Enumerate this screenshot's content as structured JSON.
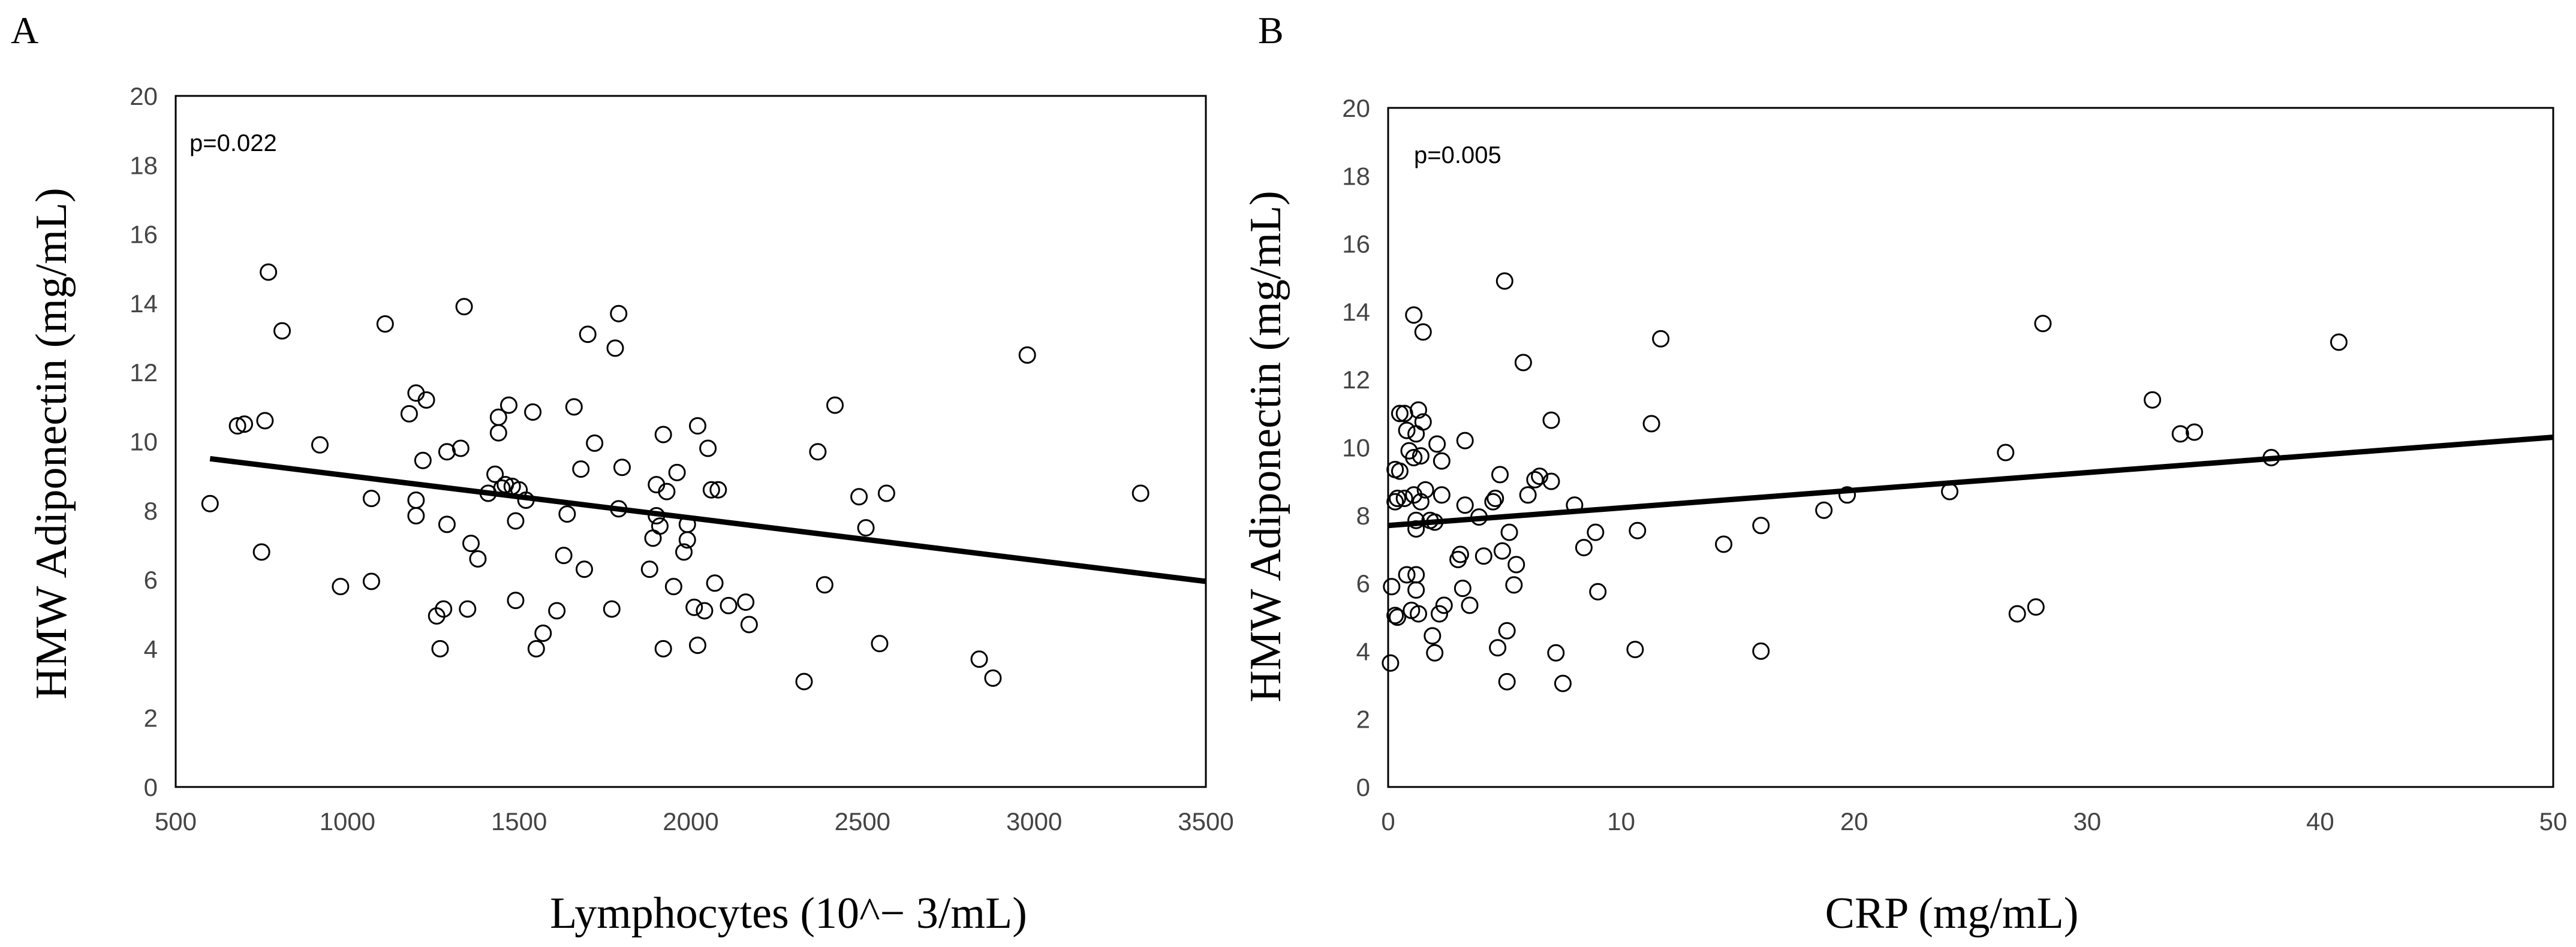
{
  "chart_data": [
    {
      "type": "scatter",
      "panel": "A",
      "annotation": "p=0.022",
      "xlabel": "Lymphocytes (10^− 3/mL)",
      "ylabel": "HMW Adiponectin (mg/mL)",
      "xlim": [
        500,
        3500
      ],
      "ylim": [
        0,
        20
      ],
      "xticks": [
        "500",
        "1000",
        "1500",
        "2000",
        "2500",
        "3000",
        "3500"
      ],
      "yticks": [
        "0",
        "2",
        "4",
        "6",
        "8",
        "10",
        "12",
        "14",
        "16",
        "18",
        "20"
      ],
      "trendline": {
        "x": [
          600,
          3500
        ],
        "y": [
          9.5,
          5.95
        ]
      },
      "points": [
        [
          600,
          8.2
        ],
        [
          680,
          10.45
        ],
        [
          700,
          10.5
        ],
        [
          750,
          6.8
        ],
        [
          760,
          10.6
        ],
        [
          770,
          14.9
        ],
        [
          810,
          13.2
        ],
        [
          920,
          9.9
        ],
        [
          980,
          5.8
        ],
        [
          1070,
          8.35
        ],
        [
          1070,
          5.95
        ],
        [
          1110,
          13.4
        ],
        [
          1180,
          10.8
        ],
        [
          1200,
          11.4
        ],
        [
          1200,
          8.3
        ],
        [
          1200,
          7.85
        ],
        [
          1220,
          9.45
        ],
        [
          1230,
          11.2
        ],
        [
          1260,
          4.95
        ],
        [
          1270,
          4.0
        ],
        [
          1280,
          5.15
        ],
        [
          1290,
          7.6
        ],
        [
          1290,
          9.7
        ],
        [
          1330,
          9.8
        ],
        [
          1340,
          13.9
        ],
        [
          1350,
          5.15
        ],
        [
          1360,
          7.05
        ],
        [
          1380,
          6.6
        ],
        [
          1410,
          8.5
        ],
        [
          1430,
          9.05
        ],
        [
          1440,
          10.7
        ],
        [
          1440,
          10.25
        ],
        [
          1450,
          8.65
        ],
        [
          1460,
          8.75
        ],
        [
          1470,
          11.05
        ],
        [
          1480,
          8.7
        ],
        [
          1490,
          5.4
        ],
        [
          1490,
          7.7
        ],
        [
          1500,
          8.6
        ],
        [
          1520,
          8.3
        ],
        [
          1540,
          10.85
        ],
        [
          1550,
          4.0
        ],
        [
          1570,
          4.45
        ],
        [
          1610,
          5.1
        ],
        [
          1630,
          6.7
        ],
        [
          1640,
          7.9
        ],
        [
          1660,
          11.0
        ],
        [
          1680,
          9.2
        ],
        [
          1690,
          6.3
        ],
        [
          1700,
          13.1
        ],
        [
          1720,
          9.95
        ],
        [
          1770,
          5.15
        ],
        [
          1780,
          12.7
        ],
        [
          1790,
          13.7
        ],
        [
          1790,
          8.05
        ],
        [
          1800,
          9.25
        ],
        [
          1880,
          6.3
        ],
        [
          1890,
          7.2
        ],
        [
          1900,
          8.75
        ],
        [
          1900,
          7.85
        ],
        [
          1910,
          7.55
        ],
        [
          1920,
          10.2
        ],
        [
          1920,
          4.0
        ],
        [
          1930,
          8.55
        ],
        [
          1950,
          5.8
        ],
        [
          1960,
          9.1
        ],
        [
          1980,
          6.8
        ],
        [
          1990,
          7.15
        ],
        [
          1990,
          7.6
        ],
        [
          2010,
          5.2
        ],
        [
          2020,
          10.45
        ],
        [
          2020,
          4.1
        ],
        [
          2040,
          5.1
        ],
        [
          2050,
          9.8
        ],
        [
          2060,
          8.6
        ],
        [
          2070,
          5.9
        ],
        [
          2080,
          8.6
        ],
        [
          2110,
          5.25
        ],
        [
          2160,
          5.35
        ],
        [
          2170,
          4.7
        ],
        [
          2330,
          3.05
        ],
        [
          2370,
          9.7
        ],
        [
          2390,
          5.85
        ],
        [
          2420,
          11.05
        ],
        [
          2490,
          8.4
        ],
        [
          2510,
          7.5
        ],
        [
          2550,
          4.15
        ],
        [
          2570,
          8.5
        ],
        [
          2840,
          3.7
        ],
        [
          2880,
          3.15
        ],
        [
          2980,
          12.5
        ],
        [
          3310,
          8.5
        ]
      ]
    },
    {
      "type": "scatter",
      "panel": "B",
      "annotation": "p=0.005",
      "xlabel": "CRP (mg/mL)",
      "ylabel": "HMW Adiponectin (mg/mL)",
      "xlim": [
        0,
        50
      ],
      "ylim": [
        0,
        20
      ],
      "xticks": [
        "0",
        "10",
        "20",
        "30",
        "40",
        "50"
      ],
      "yticks": [
        "0",
        "2",
        "4",
        "6",
        "8",
        "10",
        "12",
        "14",
        "16",
        "18",
        "20"
      ],
      "trendline": {
        "x": [
          0,
          50
        ],
        "y": [
          7.7,
          10.3
        ]
      },
      "points": [
        [
          0.1,
          3.65
        ],
        [
          0.15,
          5.9
        ],
        [
          0.3,
          5.05
        ],
        [
          0.3,
          9.35
        ],
        [
          0.3,
          8.4
        ],
        [
          0.4,
          5.0
        ],
        [
          0.4,
          8.5
        ],
        [
          0.5,
          11.0
        ],
        [
          0.5,
          9.3
        ],
        [
          0.7,
          8.5
        ],
        [
          0.7,
          11.0
        ],
        [
          0.8,
          6.25
        ],
        [
          0.8,
          10.5
        ],
        [
          0.9,
          9.9
        ],
        [
          1.0,
          5.2
        ],
        [
          1.1,
          9.7
        ],
        [
          1.1,
          13.9
        ],
        [
          1.1,
          8.6
        ],
        [
          1.2,
          10.4
        ],
        [
          1.2,
          7.85
        ],
        [
          1.2,
          7.6
        ],
        [
          1.2,
          6.25
        ],
        [
          1.2,
          5.8
        ],
        [
          1.3,
          5.1
        ],
        [
          1.3,
          11.1
        ],
        [
          1.4,
          8.4
        ],
        [
          1.4,
          9.75
        ],
        [
          1.5,
          10.75
        ],
        [
          1.5,
          13.4
        ],
        [
          1.6,
          8.75
        ],
        [
          1.8,
          7.85
        ],
        [
          1.9,
          4.45
        ],
        [
          2.0,
          3.95
        ],
        [
          2.0,
          7.8
        ],
        [
          2.1,
          10.1
        ],
        [
          2.2,
          5.1
        ],
        [
          2.3,
          9.6
        ],
        [
          2.3,
          8.6
        ],
        [
          2.4,
          5.35
        ],
        [
          3.0,
          6.7
        ],
        [
          3.1,
          6.85
        ],
        [
          3.2,
          5.85
        ],
        [
          3.3,
          8.3
        ],
        [
          3.3,
          10.2
        ],
        [
          3.5,
          5.35
        ],
        [
          3.9,
          7.95
        ],
        [
          4.1,
          6.8
        ],
        [
          4.5,
          8.4
        ],
        [
          4.6,
          8.5
        ],
        [
          4.7,
          4.1
        ],
        [
          4.8,
          9.2
        ],
        [
          4.9,
          6.95
        ],
        [
          5.0,
          14.9
        ],
        [
          5.1,
          3.1
        ],
        [
          5.1,
          4.6
        ],
        [
          5.2,
          7.5
        ],
        [
          5.4,
          5.95
        ],
        [
          5.5,
          6.55
        ],
        [
          5.8,
          12.5
        ],
        [
          6.0,
          8.6
        ],
        [
          6.3,
          9.05
        ],
        [
          6.5,
          9.15
        ],
        [
          7.0,
          9.0
        ],
        [
          7.0,
          10.8
        ],
        [
          7.2,
          3.95
        ],
        [
          7.5,
          3.05
        ],
        [
          8.0,
          8.3
        ],
        [
          8.4,
          7.05
        ],
        [
          8.9,
          7.5
        ],
        [
          9.0,
          5.75
        ],
        [
          10.6,
          4.05
        ],
        [
          10.7,
          7.55
        ],
        [
          11.3,
          10.7
        ],
        [
          11.7,
          13.2
        ],
        [
          14.4,
          7.15
        ],
        [
          16.0,
          7.7
        ],
        [
          16.0,
          4.0
        ],
        [
          18.7,
          8.15
        ],
        [
          19.7,
          8.6
        ],
        [
          24.1,
          8.7
        ],
        [
          26.5,
          9.85
        ],
        [
          27.0,
          5.1
        ],
        [
          27.8,
          5.3
        ],
        [
          28.1,
          13.65
        ],
        [
          32.8,
          11.4
        ],
        [
          34.0,
          10.4
        ],
        [
          34.6,
          10.45
        ],
        [
          37.9,
          9.7
        ],
        [
          40.8,
          13.1
        ]
      ]
    }
  ]
}
